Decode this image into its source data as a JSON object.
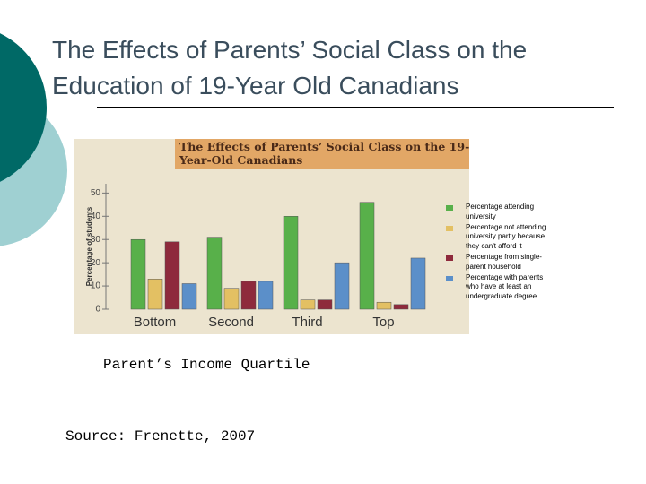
{
  "slide": {
    "title": "The Effects of Parents’ Social Class on the Education of 19-Year Old Canadians",
    "source": "Source: Frenette, 2007"
  },
  "chart_data": {
    "type": "bar",
    "title": "The Effects of Parents’ Social Class on the 19-Year-Old Canadians",
    "x_label": "Parent’s Income Quartile",
    "y_label": "Percentage of students",
    "categories": [
      "Bottom",
      "Second",
      "Third",
      "Top"
    ],
    "series": [
      {
        "name": "Percentage attending university",
        "color": "#58b04a",
        "values": [
          30,
          31,
          40,
          46
        ]
      },
      {
        "name": "Percentage not attending university partly because they can't afford it",
        "color": "#e3c063",
        "values": [
          13,
          9,
          4,
          3
        ]
      },
      {
        "name": "Percentage from single-parent household",
        "color": "#8e2a3c",
        "values": [
          29,
          12,
          4,
          2
        ]
      },
      {
        "name": "Percentage with parents who have at least an undergraduate degree",
        "color": "#5b8fc9",
        "values": [
          11,
          12,
          20,
          22
        ]
      }
    ],
    "ylim": [
      0,
      54
    ],
    "yticks": [
      0,
      10,
      20,
      30,
      40,
      50
    ],
    "legend": "right"
  }
}
